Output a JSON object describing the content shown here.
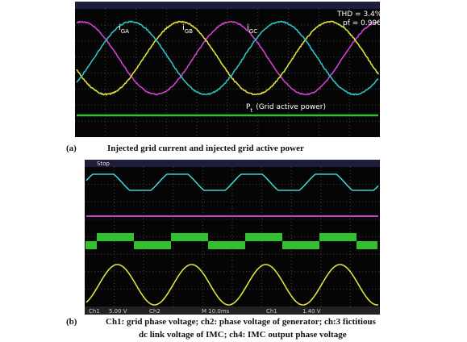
{
  "figure": {
    "panel_a": {
      "label": "(a)",
      "caption": "Injected grid current and injected grid active power",
      "annotations": {
        "thd": "THD = 3.4%",
        "pf": "pf = 0.996",
        "currents": [
          {
            "symbol": "i",
            "subscript": "GA"
          },
          {
            "symbol": "i",
            "subscript": "GB"
          },
          {
            "symbol": "i",
            "subscript": "GC"
          }
        ],
        "power": {
          "symbol": "P",
          "subscript": "t",
          "text": "(Grid active power)"
        }
      }
    },
    "panel_b": {
      "label": "(b)",
      "caption_lines": [
        "Ch1: grid phase voltage; ch2: phase voltage of generator; ch:3 fictitious",
        "dc link voltage of IMC; ch4: IMC output phase voltage"
      ],
      "top_status": "Stop",
      "readouts": [
        "Ch1",
        "5.00 V",
        "Ch2",
        "M 10.0ms",
        "Ch1",
        "1.40 V"
      ]
    }
  }
}
